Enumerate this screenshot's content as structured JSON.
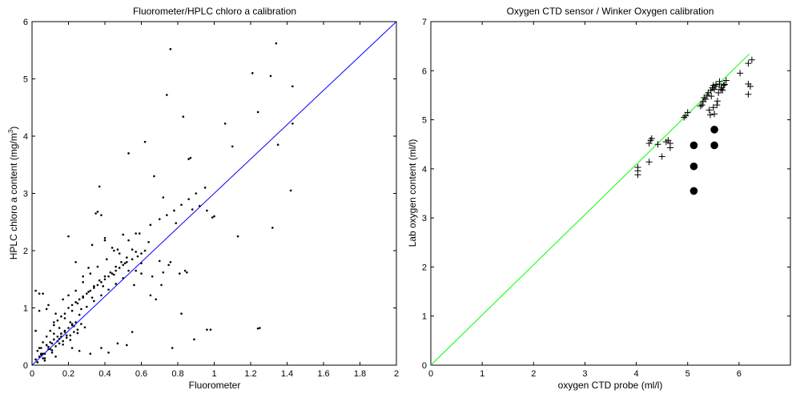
{
  "chart_data": [
    {
      "type": "scatter",
      "title": "Fluorometer/HPLC chloro a calibration",
      "xlabel": "Fluorometer",
      "ylabel_main": "HPLC chloro a content (mg/m",
      "ylabel_sup": "3",
      "ylabel_close": ")",
      "xlim": [
        0,
        2
      ],
      "ylim": [
        0,
        6
      ],
      "xticks": [
        0,
        0.2,
        0.4,
        0.6,
        0.8,
        1,
        1.2,
        1.4,
        1.6,
        1.8,
        2
      ],
      "xtick_labels": [
        "0",
        "0.2",
        "0.4",
        "0.6",
        "0.8",
        "1",
        "1.2",
        "1.4",
        "1.6",
        "1.8",
        "2"
      ],
      "yticks": [
        0,
        1,
        2,
        3,
        4,
        5,
        6
      ],
      "ytick_labels": [
        "0",
        "1",
        "2",
        "3",
        "4",
        "5",
        "6"
      ],
      "series": [
        {
          "marker": "dot",
          "color": "#000000",
          "x": [
            0.02,
            0.03,
            0.04,
            0.05,
            0.06,
            0.07,
            0.08,
            0.09,
            0.1,
            0.11,
            0.12,
            0.13,
            0.14,
            0.15,
            0.16,
            0.17,
            0.18,
            0.19,
            0.2,
            0.21,
            0.22,
            0.23,
            0.24,
            0.25,
            0.03,
            0.05,
            0.07,
            0.09,
            0.11,
            0.13,
            0.15,
            0.17,
            0.19,
            0.21,
            0.23,
            0.25,
            0.27,
            0.29,
            0.04,
            0.06,
            0.08,
            0.1,
            0.12,
            0.14,
            0.16,
            0.18,
            0.2,
            0.22,
            0.24,
            0.26,
            0.28,
            0.3,
            0.32,
            0.34,
            0.36,
            0.38,
            0.4,
            0.42,
            0.44,
            0.46,
            0.48,
            0.5,
            0.52,
            0.55,
            0.58,
            0.6,
            0.62,
            0.05,
            0.08,
            0.12,
            0.15,
            0.18,
            0.22,
            0.25,
            0.28,
            0.31,
            0.34,
            0.37,
            0.4,
            0.43,
            0.46,
            0.49,
            0.52,
            0.06,
            0.1,
            0.14,
            0.18,
            0.22,
            0.26,
            0.3,
            0.34,
            0.38,
            0.42,
            0.46,
            0.5,
            0.03,
            0.07,
            0.11,
            0.16,
            0.21,
            0.27,
            0.33,
            0.39,
            0.45,
            0.51,
            0.57,
            0.02,
            0.04,
            0.06,
            0.09,
            0.13,
            0.17,
            0.2,
            0.24,
            0.28,
            0.32,
            0.36,
            0.41,
            0.47,
            0.53,
            0.59,
            0.65,
            0.7,
            0.74,
            0.78,
            0.82,
            0.86,
            0.9,
            0.95,
            0.2,
            0.24,
            0.28,
            0.31,
            0.33,
            0.35,
            0.37,
            0.4,
            0.44,
            0.48,
            0.53,
            0.56,
            0.6,
            0.66,
            0.71,
            0.81,
            0.84,
            0.88,
            0.92,
            0.96,
            1.0,
            0.02,
            0.04,
            0.08,
            0.12,
            0.16,
            0.22,
            0.26,
            0.32,
            0.38,
            0.42,
            0.47,
            0.52,
            0.36,
            0.38,
            0.4,
            0.45,
            0.5,
            0.55,
            0.57,
            0.6,
            0.65,
            0.68,
            0.7,
            0.72,
            0.75,
            0.76,
            0.77,
            0.82,
            0.85,
            0.86,
            0.87,
            0.89,
            0.96,
            0.99,
            1.06,
            1.1,
            1.13,
            1.21,
            1.24,
            1.25,
            1.31,
            1.32,
            1.34,
            1.35,
            1.42,
            1.43,
            1.43,
            0.53,
            0.55,
            0.57,
            0.62,
            0.64,
            0.67,
            0.72,
            0.74,
            0.76,
            0.79,
            0.83,
            0.98,
            1.24
          ],
          "y": [
            0.1,
            0.25,
            0.15,
            0.3,
            0.2,
            0.12,
            0.35,
            0.28,
            0.4,
            0.22,
            0.45,
            0.33,
            0.5,
            0.38,
            0.55,
            0.42,
            0.6,
            0.48,
            0.65,
            0.52,
            0.7,
            0.58,
            0.75,
            0.62,
            0.05,
            0.18,
            0.08,
            0.32,
            0.26,
            0.15,
            0.46,
            0.36,
            0.52,
            0.44,
            0.68,
            0.56,
            0.72,
            0.66,
            0.3,
            0.4,
            0.5,
            0.6,
            0.7,
            0.78,
            0.85,
            0.9,
            1.0,
            1.05,
            1.1,
            1.15,
            1.2,
            1.25,
            1.3,
            1.35,
            1.4,
            1.45,
            1.5,
            1.55,
            1.6,
            1.65,
            1.7,
            1.75,
            1.8,
            1.85,
            1.9,
            1.95,
            2.0,
            0.2,
            0.35,
            0.55,
            0.65,
            0.82,
            0.95,
            1.08,
            1.18,
            1.28,
            1.38,
            1.48,
            1.55,
            1.62,
            1.72,
            1.8,
            1.88,
            0.12,
            0.28,
            0.42,
            0.58,
            0.72,
            0.88,
            1.02,
            1.12,
            1.22,
            1.32,
            1.42,
            1.52,
            0.05,
            0.2,
            0.38,
            0.55,
            0.75,
            0.98,
            1.18,
            1.38,
            1.58,
            1.78,
            1.98,
            0.6,
            0.95,
            1.25,
            1.05,
            0.9,
            1.15,
            1.22,
            1.3,
            1.45,
            1.6,
            1.72,
            1.85,
            2.02,
            2.18,
            2.3,
            2.45,
            2.55,
            2.62,
            2.7,
            2.8,
            2.9,
            3.0,
            3.1,
            2.25,
            1.8,
            1.55,
            1.7,
            2.1,
            2.65,
            3.12,
            2.22,
            2.05,
            1.95,
            1.65,
            1.4,
            1.6,
            1.55,
            1.4,
            1.6,
            1.65,
            2.72,
            2.78,
            2.7,
            2.6,
            1.3,
            1.25,
            0.98,
            0.75,
            0.5,
            0.3,
            0.25,
            0.2,
            0.3,
            0.22,
            0.38,
            0.35,
            2.68,
            2.62,
            2.18,
            2.0,
            2.28,
            2.02,
            1.65,
            1.78,
            1.22,
            1.15,
            1.82,
            1.62,
            1.75,
            1.8,
            0.3,
            0.9,
            1.62,
            3.6,
            3.62,
            0.45,
            0.62,
            2.58,
            4.22,
            3.82,
            2.25,
            5.1,
            4.42,
            0.65,
            5.05,
            2.4,
            5.62,
            3.85,
            3.05,
            4.22,
            4.87,
            3.7,
            0.58,
            2.3,
            3.9,
            2.15,
            3.3,
            2.93,
            4.72,
            5.52,
            2.48,
            4.34,
            0.62,
            0.64
          ]
        },
        {
          "marker": "line",
          "color": "#0000ff",
          "x": [
            0,
            2
          ],
          "y": [
            0,
            6
          ]
        }
      ]
    },
    {
      "type": "scatter",
      "title": "Oxygen CTD sensor / Winker Oxygen calibration",
      "xlabel": "oxygen CTD probe (ml/l)",
      "ylabel": "Lab oxygen content (ml/l)",
      "xlim": [
        0,
        7
      ],
      "ylim": [
        0,
        7
      ],
      "xticks": [
        0,
        1,
        2,
        3,
        4,
        5,
        6
      ],
      "xtick_labels": [
        "0",
        "1",
        "2",
        "3",
        "4",
        "5",
        "6"
      ],
      "yticks": [
        0,
        1,
        2,
        3,
        4,
        5,
        6,
        7
      ],
      "ytick_labels": [
        "0",
        "1",
        "2",
        "3",
        "4",
        "5",
        "6",
        "7"
      ],
      "series": [
        {
          "marker": "line",
          "color": "#00ff00",
          "x": [
            0,
            6.2
          ],
          "y": [
            0,
            6.34
          ]
        },
        {
          "marker": "plus",
          "color": "#000000",
          "x": [
            4.03,
            4.03,
            4.03,
            4.25,
            4.28,
            4.3,
            4.25,
            4.42,
            4.5,
            4.62,
            4.66,
            4.66,
            4.58,
            4.93,
            4.96,
            5.0,
            5.25,
            5.28,
            5.3,
            5.32,
            5.35,
            5.38,
            5.4,
            5.42,
            5.44,
            5.45,
            5.46,
            5.48,
            5.5,
            5.5,
            5.52,
            5.52,
            5.55,
            5.55,
            5.57,
            5.58,
            5.6,
            5.62,
            5.62,
            5.65,
            5.66,
            5.68,
            5.7,
            5.72,
            5.75,
            6.02,
            6.18,
            6.18,
            6.18,
            6.25,
            6.22
          ],
          "y": [
            3.88,
            3.96,
            4.03,
            4.52,
            4.58,
            4.62,
            4.14,
            4.5,
            4.25,
            4.58,
            4.52,
            4.43,
            4.55,
            5.05,
            5.08,
            5.15,
            5.28,
            5.3,
            5.37,
            5.45,
            5.42,
            5.5,
            5.55,
            5.2,
            5.1,
            5.6,
            5.48,
            5.65,
            5.7,
            5.25,
            5.62,
            5.12,
            5.72,
            5.68,
            5.3,
            5.38,
            5.55,
            5.73,
            5.78,
            5.62,
            5.65,
            5.6,
            5.7,
            5.72,
            5.8,
            5.95,
            6.15,
            5.73,
            5.52,
            6.22,
            5.68
          ]
        },
        {
          "marker": "circle",
          "color": "#000000",
          "x": [
            5.12,
            5.12,
            5.12,
            5.52,
            5.52
          ],
          "y": [
            3.55,
            4.05,
            4.48,
            4.8,
            4.48
          ]
        }
      ]
    }
  ]
}
